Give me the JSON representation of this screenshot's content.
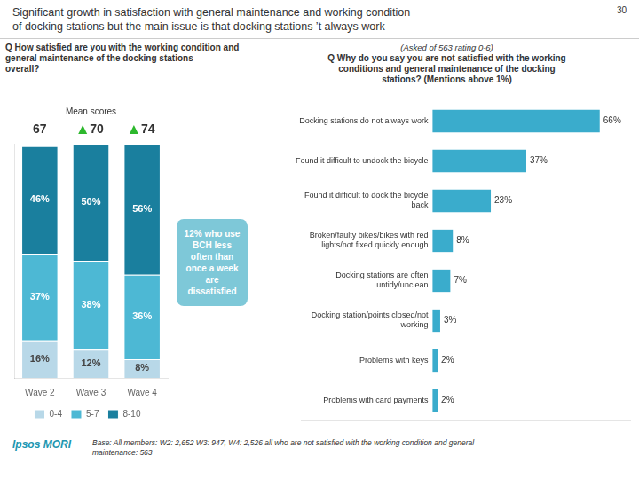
{
  "title": [
    "Significant growth in satisfaction with general maintenance and working condition",
    "of docking stations but the main issue is that docking stations ’t always work"
  ],
  "annotations": [
    {
      "text": "30"
    },
    {
      "text": "Ipsos MORI",
      "color": "#2196b0"
    },
    {
      "text": "Base: All members: W2: 2,652 W3: 947, W4: 2,526 all who are not satisfied with the working condition and general\nmaintenance: 563"
    }
  ],
  "chart_data": [
    {
      "type": "bar",
      "stacked": true,
      "subtitle": "Q How satisfied are you with the working condition and general maintenance of the docking stations\noverall?",
      "categories": [
        "Wave 2",
        "Wave 3",
        "Wave 4"
      ],
      "series": [
        {
          "name": "0-4",
          "color": "#b8d8e8",
          "values": [
            16,
            12,
            8
          ],
          "value_labels": [
            "16%",
            "12%",
            "8%"
          ]
        },
        {
          "name": "5-7",
          "color": "#4db8d4",
          "values": [
            37,
            38,
            36
          ],
          "value_labels": [
            "37%",
            "38%",
            "36%"
          ]
        },
        {
          "name": "8-10",
          "color": "#1a7f9e",
          "values": [
            46,
            50,
            56
          ],
          "value_labels": [
            "46%",
            "50%",
            "56%"
          ]
        }
      ],
      "ylim": [
        0,
        100
      ],
      "grid": false,
      "legend": "bottom",
      "data_labels": true,
      "tick_labels": "x",
      "mean_scores": {
        "name": "Mean scores",
        "values": [
          67,
          70,
          74
        ],
        "markers": [
          null,
          "triangle_up",
          "triangle_up"
        ],
        "color": "#2db82d"
      },
      "annotations": [
        {
          "text": "12% who use\nBCH less\noften than\nonce a week\nare\ndissatisfied",
          "color": "#7ec8d8"
        }
      ]
    },
    {
      "type": "bar",
      "orientation": "horizontal",
      "subtitle": [
        "(Asked of 563 rating 0-6)",
        "Q Why do you say you are not satisfied with the working\nconditions and general maintenance of the docking\nstations?  (Mentions above 1%)"
      ],
      "categories": [
        "Docking stations do not always work",
        "Found it difficult to undock the bicycle",
        "Found it difficult to dock the bicycle\nback",
        "Broken/faulty bikes/bikes with red\nlights/not fixed quickly enough",
        "Docking stations are often\nuntidy/unclean",
        "Docking station/points closed/not\nworking",
        "Problems with keys",
        "Problems with card payments"
      ],
      "values": [
        66,
        37,
        23,
        8,
        7,
        3,
        2,
        2
      ],
      "value_labels": [
        "66%",
        "37%",
        "23%",
        "8%",
        "7%",
        "3%",
        "2%",
        "2%"
      ],
      "color": "#3aaccc",
      "xlim": [
        -52,
        78
      ],
      "grid": false,
      "data_labels": true,
      "tick_labels": false
    }
  ]
}
